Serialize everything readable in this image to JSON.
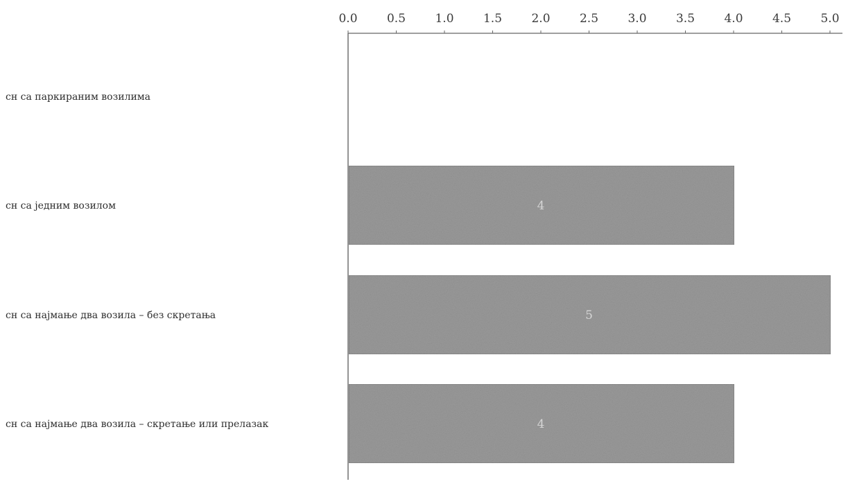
{
  "chart_data": {
    "type": "bar",
    "orientation": "horizontal",
    "categories": [
      "сн са паркираним возилима",
      "сн са једним возилом",
      "сн са најмање два возила – без скретања",
      "сн са најмање два возила – скретање или прелазак"
    ],
    "values": [
      0,
      4,
      5,
      4
    ],
    "data_labels": [
      "",
      "4",
      "5",
      "4"
    ],
    "x_ticks": [
      "0.0",
      "0.5",
      "1.0",
      "1.5",
      "2.0",
      "2.5",
      "3.0",
      "3.5",
      "4.0",
      "4.5",
      "5.0"
    ],
    "xlim": [
      0,
      5
    ],
    "axis_position": "top",
    "grid": false,
    "legend": "none",
    "title": "",
    "xlabel": "",
    "ylabel": ""
  },
  "colors": {
    "bar": "#9a9a9a",
    "bar_edge": "#7c7c7c",
    "axis": "#666666"
  }
}
